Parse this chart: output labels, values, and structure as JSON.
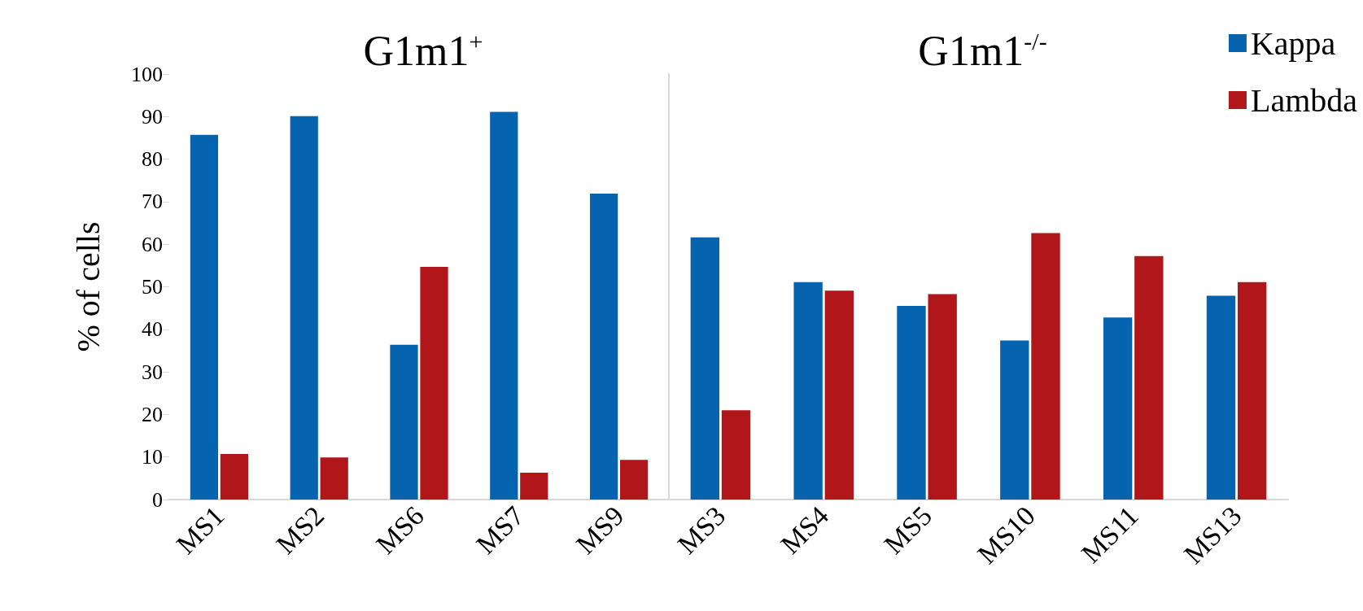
{
  "chart_data": [
    {
      "type": "bar",
      "title": "G1m1$^{+}$",
      "ylabel": "% of cells",
      "categories": [
        "MS1",
        "MS2",
        "MS6",
        "MS7",
        "MS9"
      ],
      "series": [
        {
          "color": "#0563b0",
          "values": [
            85.7,
            90.1,
            36.4,
            91.1,
            71.9
          ]
        },
        {
          "color": "#b0161a",
          "values": [
            10.7,
            9.9,
            54.7,
            6.3,
            9.3
          ]
        }
      ],
      "ylim": [
        0,
        100
      ],
      "yticks": [
        0,
        10,
        20,
        30,
        40,
        50,
        60,
        70,
        80,
        90,
        100
      ],
      "grid": false
    },
    {
      "type": "bar",
      "title": "G1m1$^{-/-}$",
      "categories": [
        "MS3",
        "MS4",
        "MS5",
        "MS10",
        "MS11",
        "MS13"
      ],
      "series": [
        {
          "name": "Kappa",
          "color": "#0563b0",
          "values": [
            61.6,
            51.1,
            45.5,
            37.4,
            42.8,
            47.9
          ]
        },
        {
          "name": "Lambda",
          "color": "#b0161a",
          "values": [
            21.0,
            49.1,
            48.3,
            62.6,
            57.2,
            51.1
          ]
        }
      ],
      "ylim": [
        0,
        100
      ],
      "yticks": [
        0,
        10,
        20,
        30,
        40,
        50,
        60,
        70,
        80,
        90,
        100
      ],
      "tick_labels": "x",
      "grid": false,
      "legend": "top right"
    }
  ]
}
